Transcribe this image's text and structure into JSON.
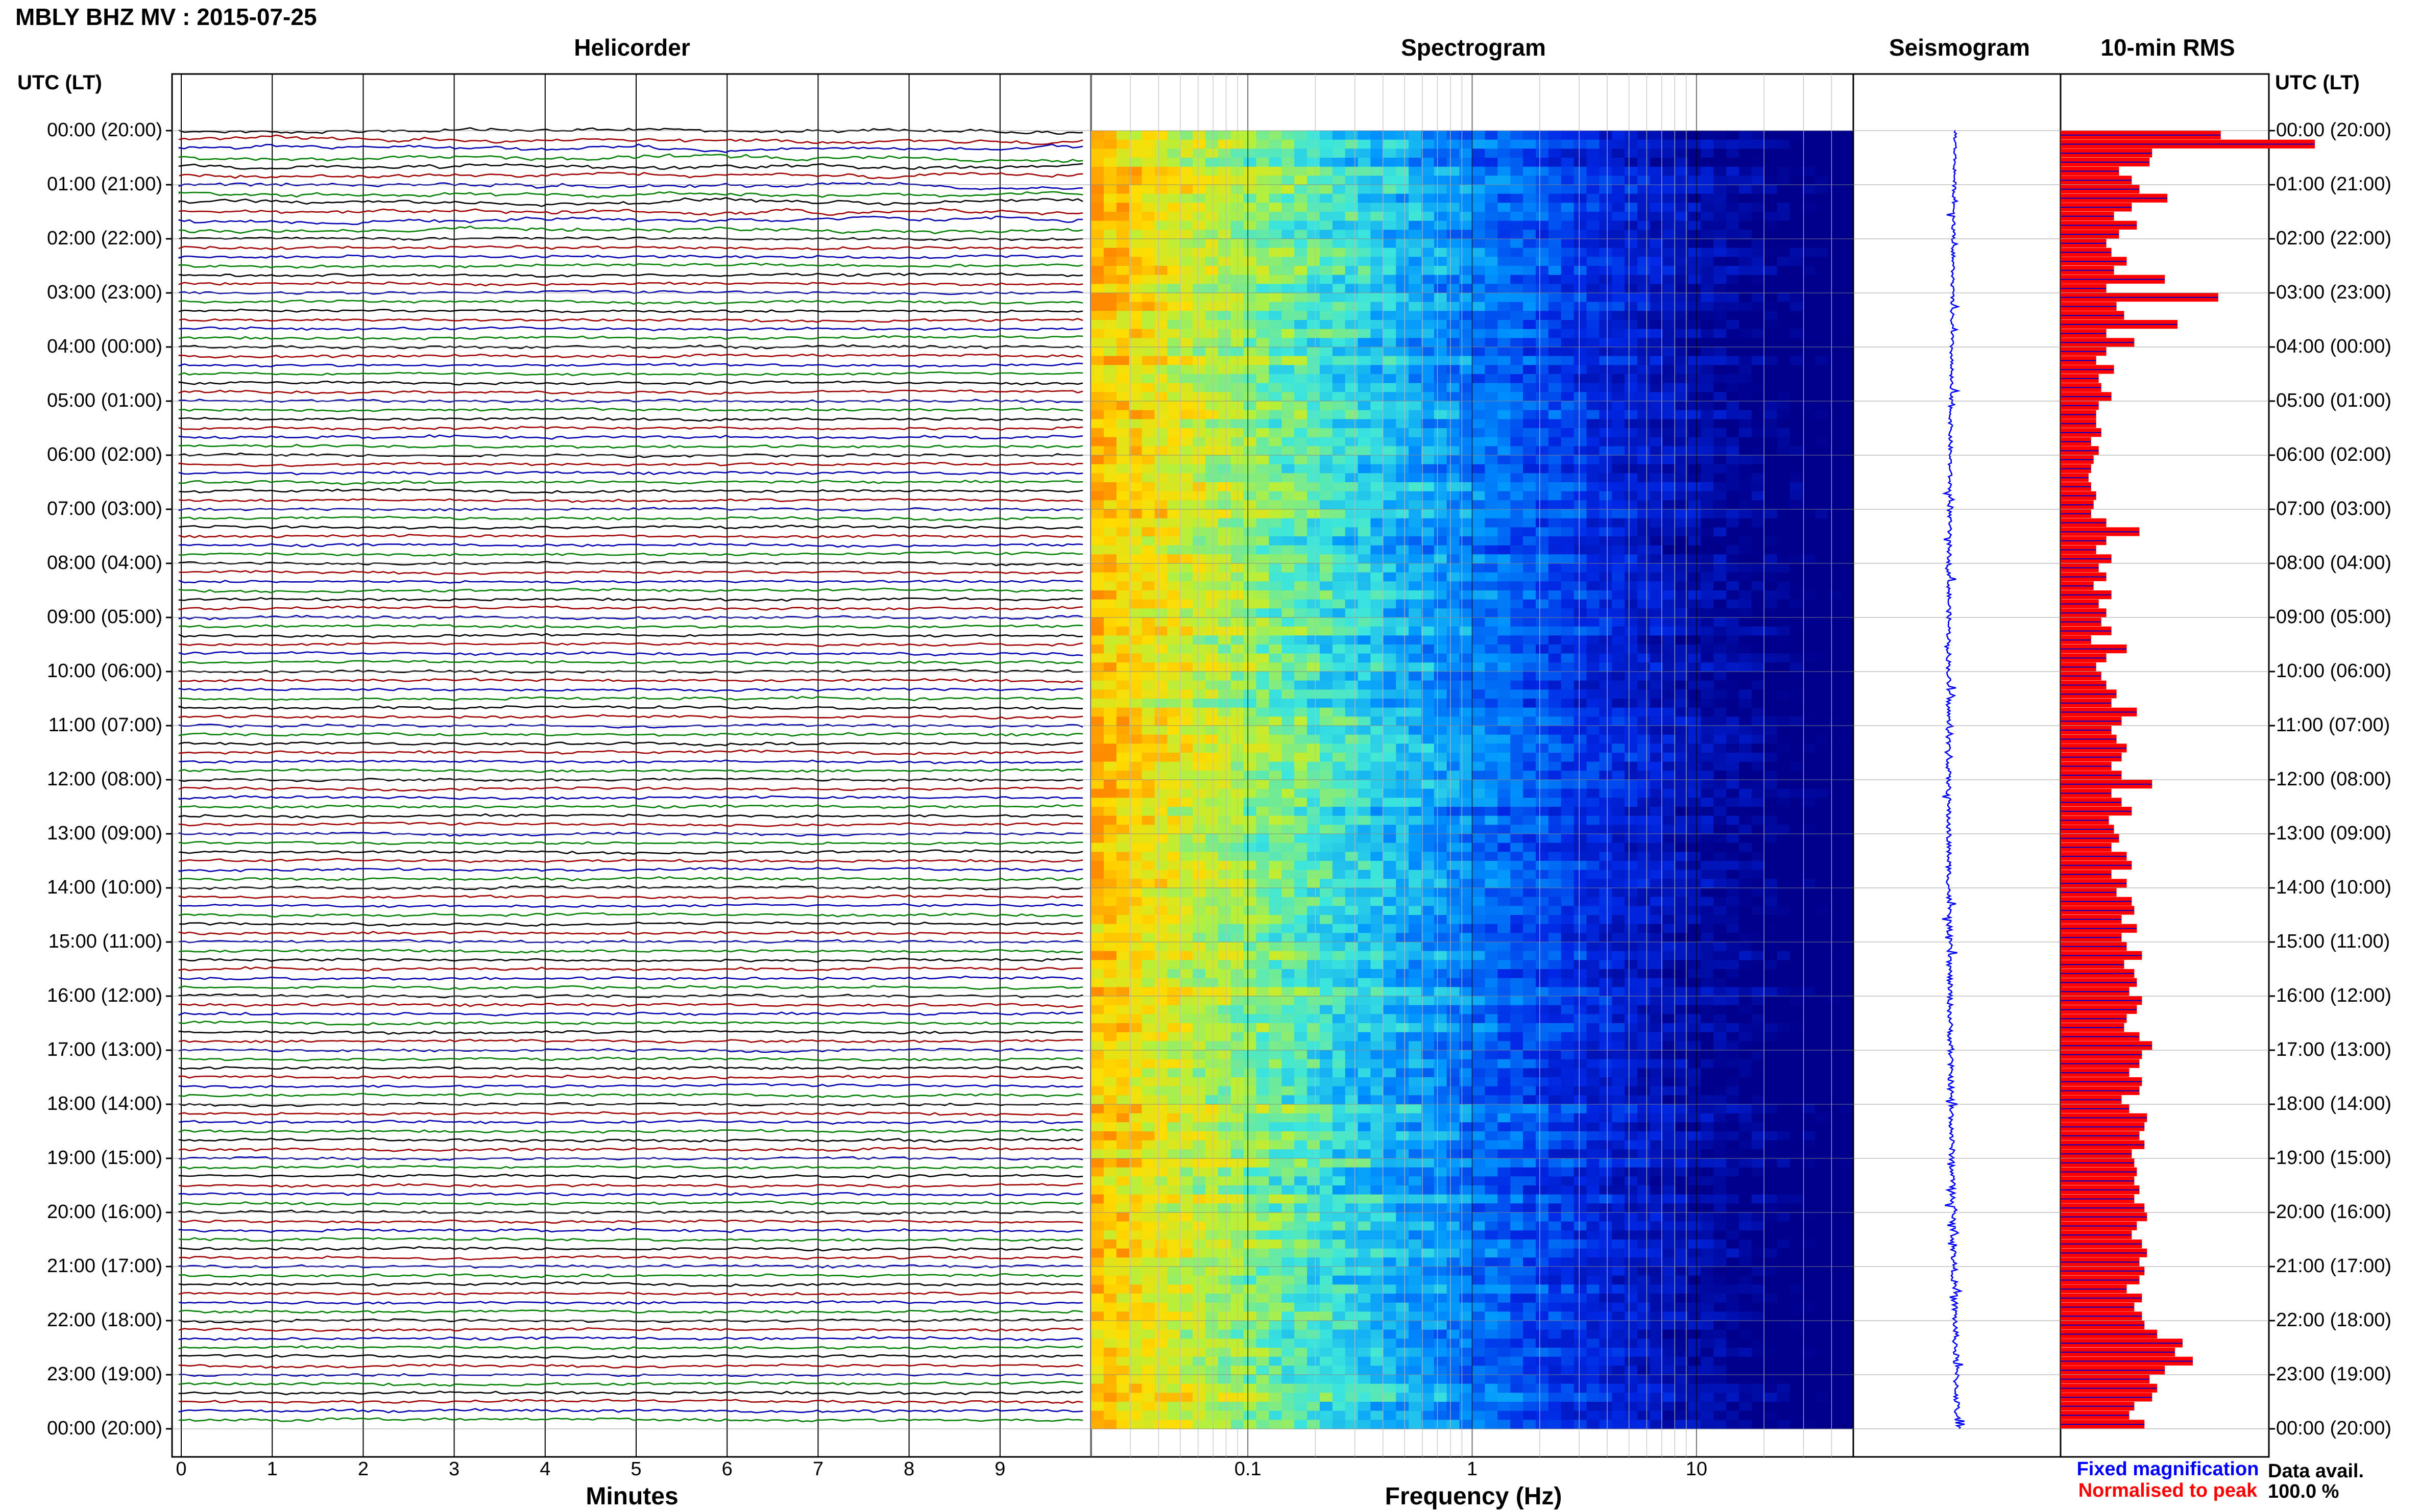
{
  "title": "MBLY BHZ MV : 2015-07-25",
  "panels": {
    "helicorder": "Helicorder",
    "spectrogram": "Spectrogram",
    "seismogram": "Seismogram",
    "rms": "10-min RMS"
  },
  "time_axis_label": "UTC (LT)",
  "xlabels": {
    "helicorder": "Minutes",
    "spectrogram": "Frequency (Hz)"
  },
  "legend": {
    "fixed": "Fixed magnification",
    "normalised": "Normalised to peak",
    "fixed_color": "#0000ff",
    "normalised_color": "#ff0000"
  },
  "data_avail": {
    "label": "Data avail.",
    "value": "100.0 %"
  },
  "colors": {
    "trace": [
      "#000000",
      "#a00000",
      "#0000b0",
      "#008000"
    ],
    "rms_bar": "#ff0000",
    "rms_stripe": "#0000cc",
    "seismo": "#0000ff"
  },
  "chart_data": [
    {
      "type": "line",
      "name": "helicorder",
      "x_ticks": [
        "0",
        "1",
        "2",
        "3",
        "4",
        "5",
        "6",
        "7",
        "8",
        "9"
      ],
      "xlabel": "Minutes",
      "xlim": [
        0,
        10
      ],
      "rows_per_hour": 6,
      "y_ticks": [
        "00:00 (20:00)",
        "01:00 (21:00)",
        "02:00 (22:00)",
        "03:00 (23:00)",
        "04:00 (00:00)",
        "05:00 (01:00)",
        "06:00 (02:00)",
        "07:00 (03:00)",
        "08:00 (04:00)",
        "09:00 (05:00)",
        "10:00 (06:00)",
        "11:00 (07:00)",
        "12:00 (08:00)",
        "13:00 (09:00)",
        "14:00 (10:00)",
        "15:00 (11:00)",
        "16:00 (12:00)",
        "17:00 (13:00)",
        "18:00 (14:00)",
        "19:00 (15:00)",
        "20:00 (16:00)",
        "21:00 (17:00)",
        "22:00 (18:00)",
        "23:00 (19:00)",
        "00:00 (20:00)"
      ]
    },
    {
      "type": "heatmap",
      "name": "spectrogram",
      "xlabel": "Frequency (Hz)",
      "x_scale": "log",
      "xlim": [
        0.02,
        50
      ],
      "x_ticks": [
        "0.1",
        "1",
        "10"
      ]
    },
    {
      "type": "line",
      "name": "seismogram"
    },
    {
      "type": "bar",
      "name": "10-min RMS",
      "orientation": "horizontal",
      "xlim": [
        0,
        1
      ],
      "values": [
        0.63,
        1.0,
        0.36,
        0.35,
        0.23,
        0.28,
        0.31,
        0.42,
        0.28,
        0.21,
        0.3,
        0.23,
        0.18,
        0.2,
        0.26,
        0.21,
        0.41,
        0.18,
        0.62,
        0.22,
        0.25,
        0.46,
        0.18,
        0.29,
        0.18,
        0.14,
        0.21,
        0.15,
        0.16,
        0.2,
        0.15,
        0.14,
        0.14,
        0.16,
        0.12,
        0.15,
        0.13,
        0.12,
        0.11,
        0.12,
        0.14,
        0.13,
        0.12,
        0.18,
        0.31,
        0.18,
        0.14,
        0.2,
        0.15,
        0.18,
        0.13,
        0.2,
        0.15,
        0.18,
        0.16,
        0.2,
        0.12,
        0.26,
        0.18,
        0.14,
        0.16,
        0.18,
        0.22,
        0.2,
        0.3,
        0.24,
        0.2,
        0.22,
        0.26,
        0.24,
        0.2,
        0.24,
        0.36,
        0.2,
        0.24,
        0.28,
        0.19,
        0.21,
        0.23,
        0.2,
        0.26,
        0.28,
        0.2,
        0.26,
        0.22,
        0.28,
        0.29,
        0.24,
        0.3,
        0.24,
        0.26,
        0.32,
        0.25,
        0.29,
        0.3,
        0.27,
        0.32,
        0.3,
        0.26,
        0.25,
        0.31,
        0.36,
        0.32,
        0.31,
        0.27,
        0.32,
        0.31,
        0.24,
        0.27,
        0.34,
        0.33,
        0.31,
        0.33,
        0.28,
        0.29,
        0.3,
        0.29,
        0.31,
        0.29,
        0.33,
        0.34,
        0.3,
        0.28,
        0.32,
        0.34,
        0.31,
        0.33,
        0.31,
        0.26,
        0.32,
        0.29,
        0.32,
        0.33,
        0.38,
        0.48,
        0.45,
        0.52,
        0.41,
        0.35,
        0.38,
        0.36,
        0.29,
        0.27,
        0.33
      ]
    }
  ]
}
